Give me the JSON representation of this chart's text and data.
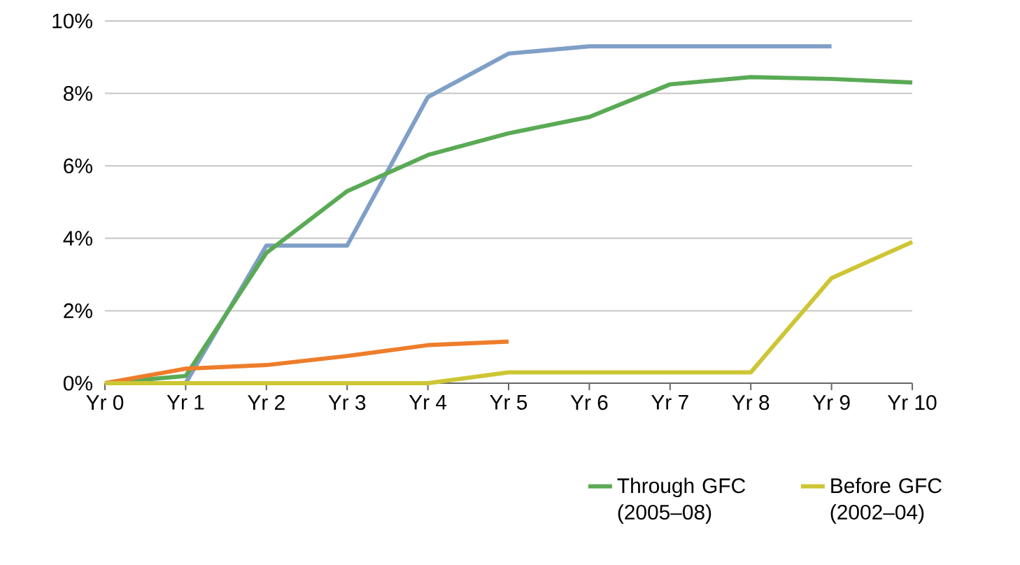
{
  "chart_data": {
    "type": "line",
    "categories": [
      "Yr 0",
      "Yr 1",
      "Yr 2",
      "Yr 3",
      "Yr 4",
      "Yr 5",
      "Yr 6",
      "Yr 7",
      "Yr 8",
      "Yr 9",
      "Yr 10"
    ],
    "series": [
      {
        "color": "#7f9fc6",
        "values": [
          0,
          0,
          3.8,
          3.8,
          7.9,
          9.1,
          9.3,
          9.3,
          9.3,
          9.3,
          null
        ]
      },
      {
        "name": "Through GFC (2005–08)",
        "color": "#5aaa55",
        "values": [
          0,
          0.2,
          3.6,
          5.3,
          6.3,
          6.9,
          7.35,
          8.25,
          8.45,
          8.4,
          8.3
        ]
      },
      {
        "color": "#ee7d2b",
        "values": [
          0,
          0.4,
          0.5,
          0.75,
          1.05,
          1.15,
          null,
          null,
          null,
          null,
          null
        ]
      },
      {
        "name": "Before GFC (2002–04)",
        "color": "#cdc634",
        "values": [
          0,
          0,
          0,
          0,
          0,
          0.3,
          0.3,
          0.3,
          0.3,
          2.9,
          3.9
        ]
      }
    ],
    "ylim": [
      0,
      10
    ],
    "yticks": [
      {
        "value": 0,
        "label": "0%"
      },
      {
        "value": 2,
        "label": "2%"
      },
      {
        "value": 4,
        "label": "4%"
      },
      {
        "value": 6,
        "label": "6%"
      },
      {
        "value": 8,
        "label": "8%"
      },
      {
        "value": 10,
        "label": "10%"
      }
    ],
    "grid": "y",
    "legend": "bottom right",
    "marker": "none",
    "line_style": "solid"
  }
}
